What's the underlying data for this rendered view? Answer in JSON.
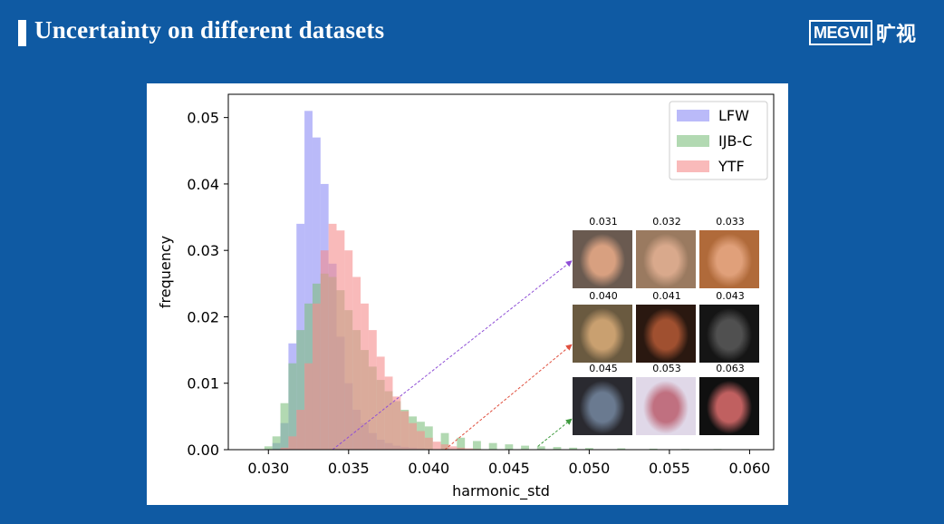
{
  "slide": {
    "title": "Uncertainty on different datasets",
    "logo_text": "MEGVII",
    "logo_cn": "旷视"
  },
  "colors": {
    "background": "#0f5aa3",
    "lfw": "#8c8cf5",
    "ijbc": "#7fbf7f",
    "ytf": "#f58c8c"
  },
  "chart_data": {
    "type": "histogram",
    "xlabel": "harmonic_std",
    "ylabel": "frequency",
    "xlim": [
      0.0275,
      0.0615
    ],
    "ylim": [
      0,
      0.0535
    ],
    "x_ticks": [
      "0.030",
      "0.035",
      "0.040",
      "0.045",
      "0.050",
      "0.055",
      "0.060"
    ],
    "y_ticks": [
      "0.00",
      "0.01",
      "0.02",
      "0.03",
      "0.04",
      "0.05"
    ],
    "legend_position": "top-right",
    "grid": false,
    "series": [
      {
        "name": "LFW",
        "x": [
          0.0305,
          0.031,
          0.0315,
          0.032,
          0.0325,
          0.033,
          0.0335,
          0.034,
          0.0345,
          0.035,
          0.0355,
          0.036,
          0.0365,
          0.037,
          0.0375,
          0.038,
          0.0385,
          0.039,
          0.0395,
          0.04
        ],
        "y": [
          0.001,
          0.004,
          0.016,
          0.034,
          0.051,
          0.047,
          0.04,
          0.028,
          0.017,
          0.01,
          0.006,
          0.004,
          0.0025,
          0.0015,
          0.001,
          0.0006,
          0.0004,
          0.0003,
          0.0002,
          0.0001
        ]
      },
      {
        "name": "IJB-C",
        "x": [
          0.03,
          0.0305,
          0.031,
          0.0315,
          0.032,
          0.0325,
          0.033,
          0.0335,
          0.034,
          0.0345,
          0.035,
          0.0355,
          0.036,
          0.0365,
          0.037,
          0.0375,
          0.038,
          0.0385,
          0.039,
          0.0395,
          0.04,
          0.041,
          0.042,
          0.043,
          0.044,
          0.045,
          0.046,
          0.047,
          0.048,
          0.049,
          0.05,
          0.052,
          0.054,
          0.056,
          0.058,
          0.06
        ],
        "y": [
          0.0005,
          0.002,
          0.007,
          0.013,
          0.018,
          0.022,
          0.025,
          0.0265,
          0.026,
          0.024,
          0.021,
          0.018,
          0.015,
          0.0125,
          0.0105,
          0.0088,
          0.0073,
          0.006,
          0.005,
          0.0042,
          0.0035,
          0.0025,
          0.0018,
          0.0013,
          0.001,
          0.0008,
          0.0006,
          0.0005,
          0.0004,
          0.0003,
          0.00025,
          0.0002,
          0.00015,
          0.0001,
          0.0001,
          5e-05
        ]
      },
      {
        "name": "YTF",
        "x": [
          0.031,
          0.0315,
          0.032,
          0.0325,
          0.033,
          0.0335,
          0.034,
          0.0345,
          0.035,
          0.0355,
          0.036,
          0.0365,
          0.037,
          0.0375,
          0.038,
          0.0385,
          0.039,
          0.0395,
          0.04,
          0.0405,
          0.041,
          0.0415,
          0.042,
          0.0425,
          0.043
        ],
        "y": [
          0.0003,
          0.002,
          0.006,
          0.013,
          0.022,
          0.03,
          0.034,
          0.033,
          0.03,
          0.026,
          0.022,
          0.018,
          0.014,
          0.011,
          0.008,
          0.0058,
          0.004,
          0.0028,
          0.0018,
          0.0012,
          0.0008,
          0.0005,
          0.0003,
          0.0002,
          0.0001
        ]
      }
    ],
    "annotations": [
      {
        "color": "#8f4fd6",
        "from_x": 0.034,
        "from_y": 0.0,
        "to_x": 0.0489,
        "to_y": 0.0284
      },
      {
        "color": "#e0503f",
        "from_x": 0.041,
        "from_y": 0.0,
        "to_x": 0.0489,
        "to_y": 0.0158
      },
      {
        "color": "#3f9a3f",
        "from_x": 0.0468,
        "from_y": 0.0005,
        "to_x": 0.0489,
        "to_y": 0.0046
      }
    ],
    "face_samples": [
      {
        "label": "0.031",
        "tone": "#6a5a50",
        "skin": "#d8a080"
      },
      {
        "label": "0.032",
        "tone": "#9a7a60",
        "skin": "#d9a98c"
      },
      {
        "label": "0.033",
        "tone": "#b06a3a",
        "skin": "#e0a07a"
      },
      {
        "label": "0.040",
        "tone": "#6a5a40",
        "skin": "#c9a070"
      },
      {
        "label": "0.041",
        "tone": "#2a1810",
        "skin": "#a05030"
      },
      {
        "label": "0.043",
        "tone": "#151515",
        "skin": "#505050"
      },
      {
        "label": "0.045",
        "tone": "#2a2a30",
        "skin": "#6a7a90"
      },
      {
        "label": "0.053",
        "tone": "#e0d8e8",
        "skin": "#c07080"
      },
      {
        "label": "0.063",
        "tone": "#101010",
        "skin": "#c06060"
      }
    ]
  }
}
